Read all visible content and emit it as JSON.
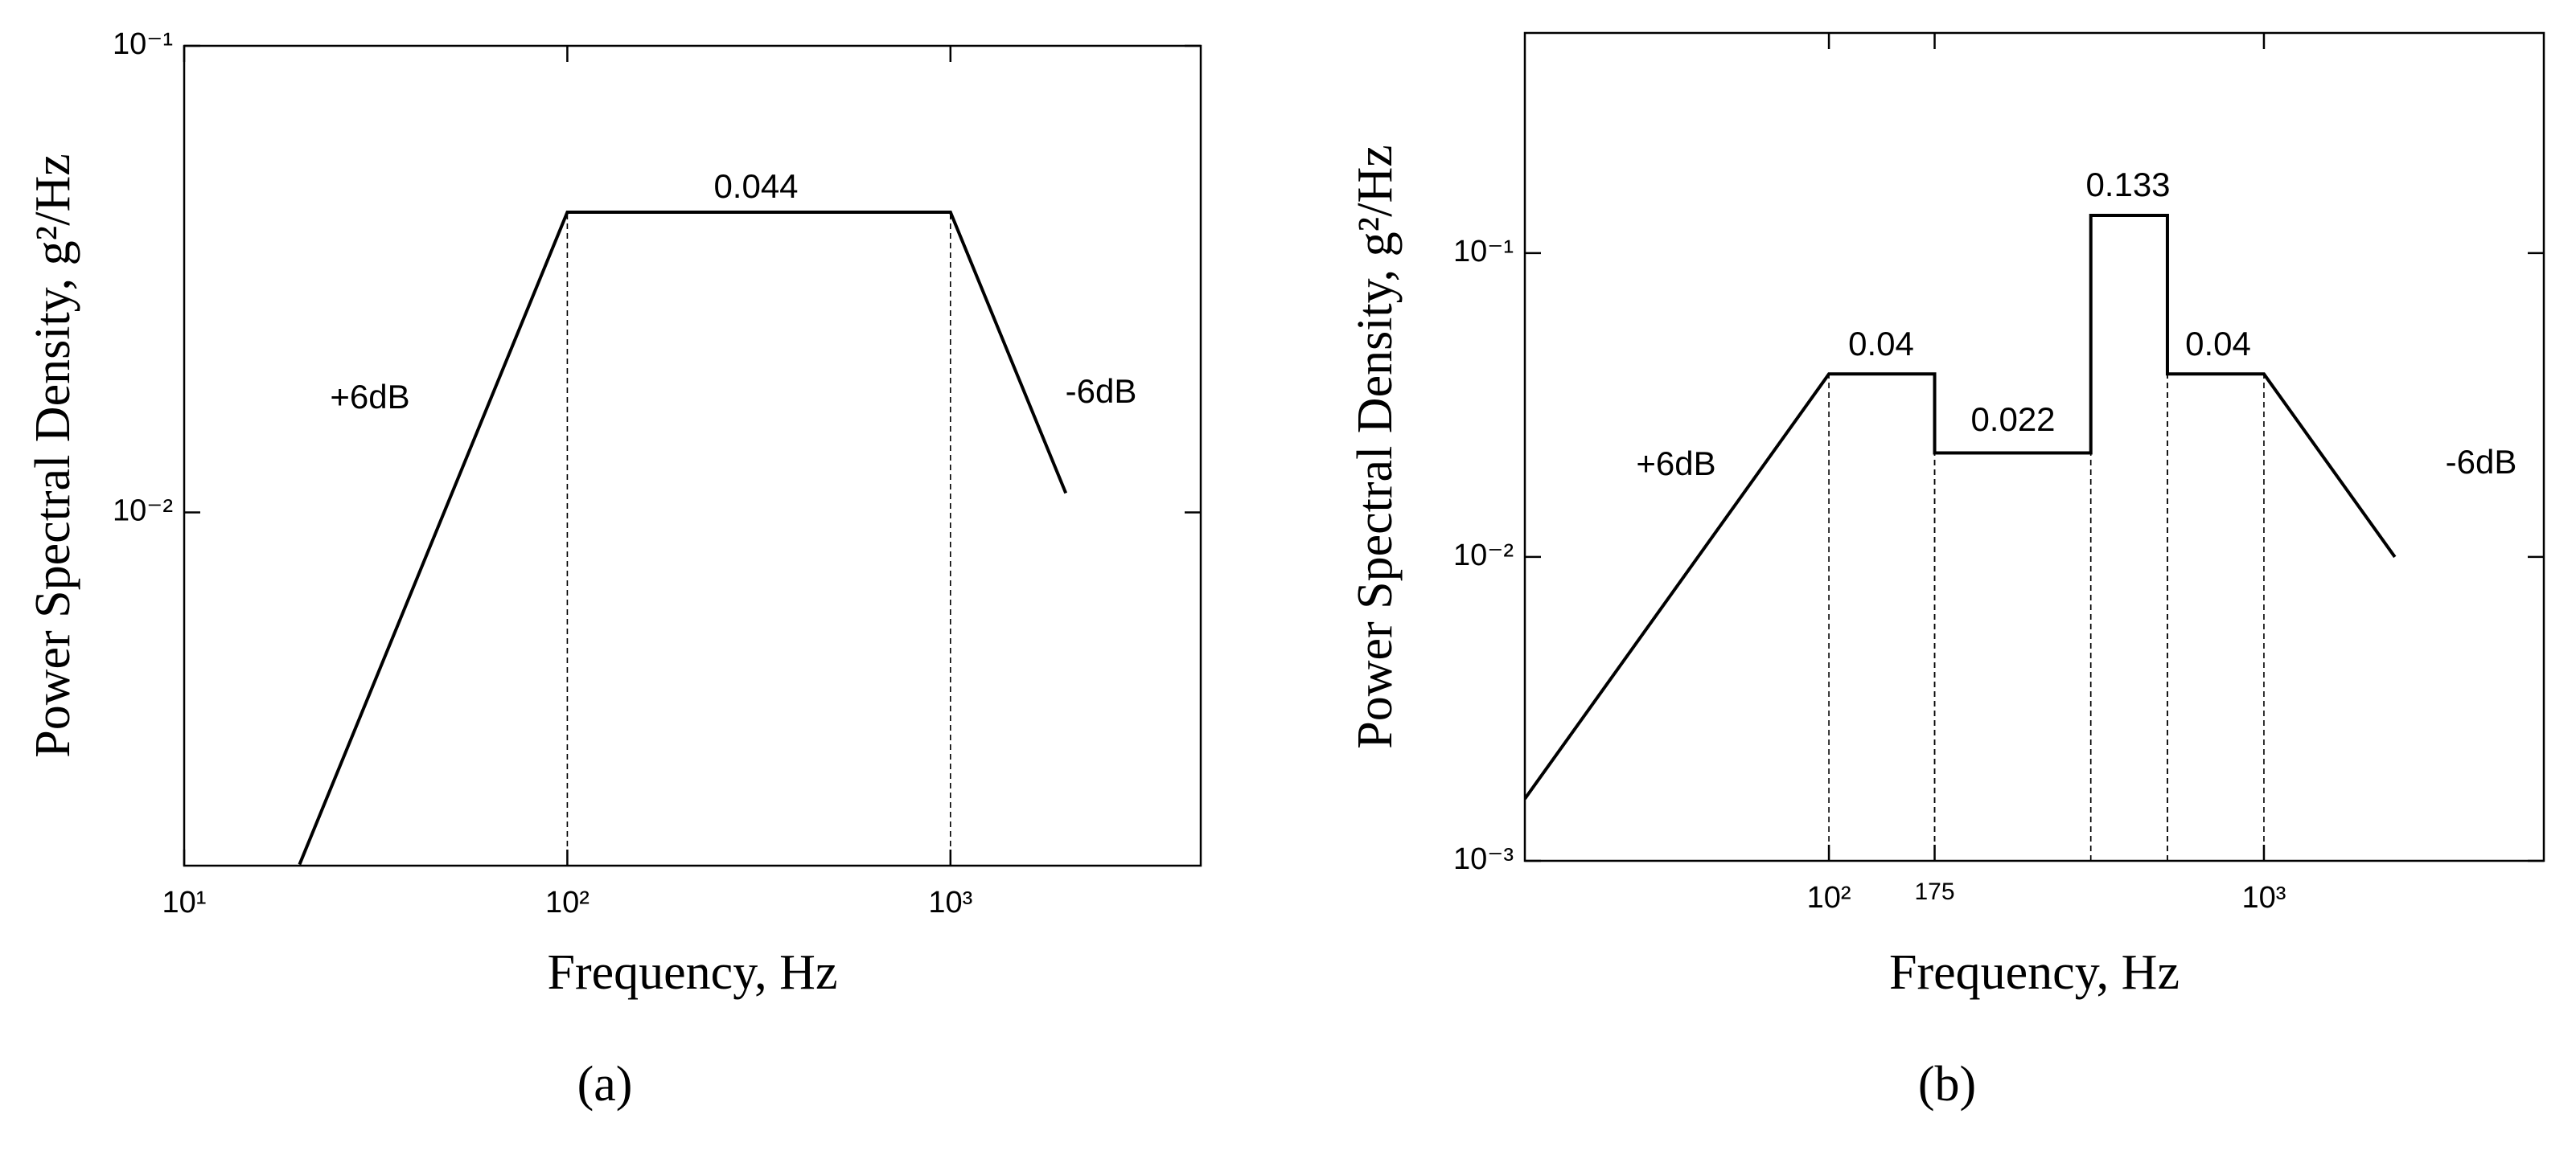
{
  "chart_data": [
    {
      "type": "line",
      "xlabel": "Frequency, Hz",
      "ylabel": "Power Spectral Density, g²/Hz",
      "caption": "(a)",
      "xlog": true,
      "ylog": true,
      "xlim": [
        10,
        4500
      ],
      "ylim": [
        0.00175,
        0.1
      ],
      "xticks": [
        {
          "value": 10,
          "label": "10¹"
        },
        {
          "value": 100,
          "label": "10²"
        },
        {
          "value": 1000,
          "label": "10³"
        }
      ],
      "yticks": [
        {
          "value": 0.01,
          "label": "10⁻²"
        },
        {
          "value": 0.1,
          "label": "10⁻¹"
        }
      ],
      "x": [
        20,
        100,
        1000,
        2000
      ],
      "values": [
        0.00176,
        0.044,
        0.044,
        0.011
      ],
      "color": "#000000",
      "annotations": [
        "0.044",
        "+6dB",
        "-6dB"
      ]
    },
    {
      "type": "line",
      "xlabel": "Frequency, Hz",
      "ylabel": "Power Spectral Density, g²/Hz",
      "caption": "(b)",
      "xlog": true,
      "ylog": true,
      "xlim": [
        20,
        4400
      ],
      "ylim": [
        0.001,
        0.53
      ],
      "xticks": [
        {
          "value": 100,
          "label": "10²"
        },
        175,
        {
          "value": 1000,
          "label": "10³"
        }
      ],
      "yticks": [
        {
          "value": 0.001,
          "label": "10⁻³"
        },
        {
          "value": 0.01,
          "label": "10⁻²"
        },
        {
          "value": 0.1,
          "label": "10⁻¹"
        }
      ],
      "x": [
        20,
        100,
        175,
        175,
        400,
        400,
        600,
        600,
        1000,
        2000
      ],
      "values": [
        0.0016,
        0.04,
        0.04,
        0.022,
        0.022,
        0.133,
        0.133,
        0.04,
        0.04,
        0.01
      ],
      "color": "#000000",
      "annotations": [
        "+6dB",
        "0.04",
        "0.022",
        "0.133",
        "0.04",
        "-6dB"
      ]
    }
  ]
}
